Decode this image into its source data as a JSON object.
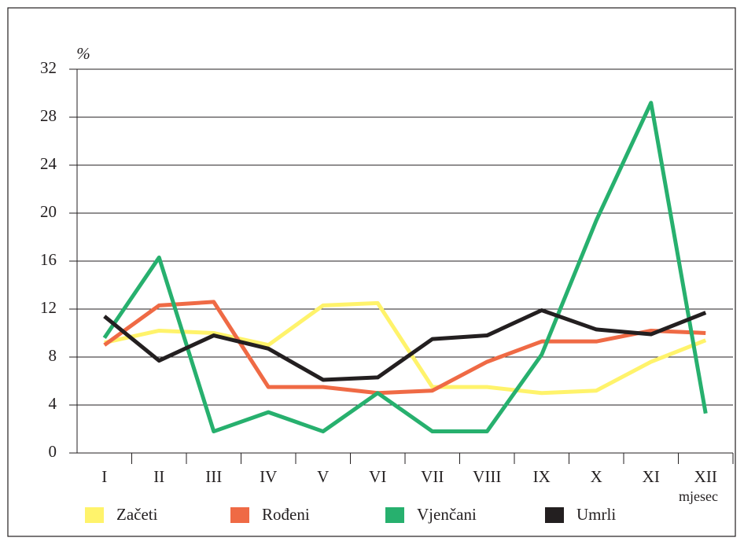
{
  "chart_data": {
    "type": "line",
    "y_label": "%",
    "x_label": "mjesec",
    "categories": [
      "I",
      "II",
      "III",
      "IV",
      "V",
      "VI",
      "VII",
      "VIII",
      "IX",
      "X",
      "XI",
      "XII"
    ],
    "series": [
      {
        "name": "Začeti",
        "color": "#fff36b",
        "values": [
          9.2,
          10.2,
          10.0,
          9.0,
          12.3,
          12.5,
          5.5,
          5.5,
          5.0,
          5.2,
          7.6,
          9.4
        ]
      },
      {
        "name": "Rođeni",
        "color": "#ef6a45",
        "values": [
          9.0,
          12.3,
          12.6,
          5.5,
          5.5,
          5.0,
          5.2,
          7.6,
          9.3,
          9.3,
          10.2,
          10.0
        ]
      },
      {
        "name": "Vjenčani",
        "color": "#27b06e",
        "values": [
          9.6,
          16.3,
          1.8,
          3.4,
          1.8,
          5.0,
          1.8,
          1.8,
          8.2,
          19.4,
          29.2,
          3.3
        ]
      },
      {
        "name": "Umrli",
        "color": "#231f20",
        "values": [
          11.4,
          7.7,
          9.8,
          8.7,
          6.1,
          6.3,
          9.5,
          9.8,
          11.9,
          10.3,
          9.9,
          11.7
        ]
      }
    ],
    "ylim": [
      0,
      32
    ],
    "yticks": [
      0,
      4,
      8,
      12,
      16,
      20,
      24,
      28,
      32
    ],
    "grid": true
  }
}
